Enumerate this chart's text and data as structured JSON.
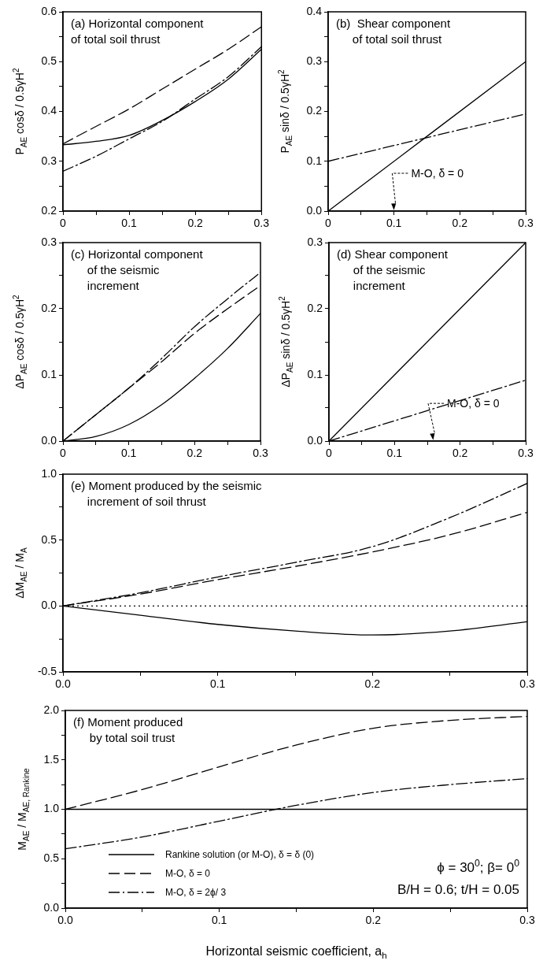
{
  "chart_data": [
    {
      "type": "line",
      "title": "(a) Horizontal component\nof total soil thrust",
      "ylabel": "P$_{AE}$ cosδ / 0.5γH$^{2}$",
      "xlim": [
        0,
        0.3
      ],
      "ylim": [
        0.2,
        0.6
      ],
      "xticks": [
        {
          "value": 0,
          "label": "0"
        },
        {
          "value": 0.05,
          "label": null
        },
        0.1,
        {
          "value": 0.15,
          "label": null
        },
        0.2,
        {
          "value": 0.25,
          "label": null
        },
        0.3
      ],
      "yticks": [
        0.2,
        {
          "value": 0.25,
          "label": null
        },
        0.3,
        {
          "value": 0.35,
          "label": null
        },
        0.4,
        {
          "value": 0.45,
          "label": null
        },
        0.5,
        {
          "value": 0.55,
          "label": null
        },
        0.6
      ],
      "x": [
        0,
        0.05,
        0.1,
        0.15,
        0.2,
        0.25,
        0.3
      ],
      "series": [
        {
          "color": "#000000",
          "line_style": "solid",
          "values": [
            0.333,
            0.34,
            0.352,
            0.382,
            0.42,
            0.465,
            0.525
          ]
        },
        {
          "color": "#000000",
          "line_style": "dashed",
          "values": [
            0.335,
            0.37,
            0.405,
            0.445,
            0.485,
            0.525,
            0.57
          ]
        },
        {
          "color": "#000000",
          "line_style": "dashdot",
          "values": [
            0.28,
            0.31,
            0.345,
            0.38,
            0.425,
            0.47,
            0.53
          ]
        }
      ]
    },
    {
      "type": "line",
      "title": "(b)  Shear component\n     of total soil thrust",
      "ylabel": "P$_{AE}$ sinδ / 0.5γH$^{2}$",
      "xlim": [
        0,
        0.3
      ],
      "ylim": [
        0,
        0.4
      ],
      "xticks": [
        {
          "value": 0,
          "label": "0"
        },
        {
          "value": 0.05,
          "label": null
        },
        0.1,
        {
          "value": 0.15,
          "label": null
        },
        0.2,
        {
          "value": 0.25,
          "label": null
        },
        0.3
      ],
      "yticks": [
        {
          "value": 0,
          "label": "0.0"
        },
        {
          "value": 0.05,
          "label": null
        },
        0.1,
        {
          "value": 0.15,
          "label": null
        },
        0.2,
        {
          "value": 0.25,
          "label": null
        },
        0.3,
        {
          "value": 0.35,
          "label": null
        },
        0.4
      ],
      "x": [
        0,
        0.3
      ],
      "series": [
        {
          "color": "#000000",
          "line_style": "solid",
          "values": [
            0,
            0.3
          ]
        },
        {
          "color": "#000000",
          "line_style": "dashdot",
          "values": [
            0.1,
            0.195
          ]
        }
      ],
      "annotations": [
        "M-O, δ = 0"
      ]
    },
    {
      "type": "line",
      "title": "(c) Horizontal component\n     of the seismic\n     increment",
      "ylabel": "ΔP$_{AE}$ cosδ / 0.5γH$^{2}$",
      "xlim": [
        0,
        0.3
      ],
      "ylim": [
        0,
        0.3
      ],
      "xticks": [
        {
          "value": 0,
          "label": "0"
        },
        {
          "value": 0.05,
          "label": null
        },
        0.1,
        {
          "value": 0.15,
          "label": null
        },
        0.2,
        {
          "value": 0.25,
          "label": null
        },
        0.3
      ],
      "yticks": [
        {
          "value": 0,
          "label": "0.0"
        },
        {
          "value": 0.05,
          "label": null
        },
        0.1,
        {
          "value": 0.15,
          "label": null
        },
        0.2,
        {
          "value": 0.25,
          "label": null
        },
        0.3
      ],
      "x": [
        0,
        0.05,
        0.1,
        0.15,
        0.2,
        0.25,
        0.3
      ],
      "series": [
        {
          "color": "#000000",
          "line_style": "solid",
          "values": [
            0,
            0.007,
            0.025,
            0.055,
            0.095,
            0.14,
            0.193
          ]
        },
        {
          "color": "#000000",
          "line_style": "dashed",
          "values": [
            0,
            0.04,
            0.08,
            0.12,
            0.163,
            0.2,
            0.235
          ]
        },
        {
          "color": "#000000",
          "line_style": "dashdot",
          "values": [
            0,
            0.04,
            0.08,
            0.125,
            0.173,
            0.215,
            0.255
          ]
        }
      ]
    },
    {
      "type": "line",
      "title": "(d) Shear component\n     of the seismic\n     increment",
      "ylabel": "ΔP$_{AE}$ sinδ / 0.5γH$^{2}$",
      "xlim": [
        0,
        0.3
      ],
      "ylim": [
        0,
        0.3
      ],
      "xticks": [
        {
          "value": 0,
          "label": "0"
        },
        {
          "value": 0.05,
          "label": null
        },
        0.1,
        {
          "value": 0.15,
          "label": null
        },
        0.2,
        {
          "value": 0.25,
          "label": null
        },
        0.3
      ],
      "yticks": [
        {
          "value": 0,
          "label": "0.0"
        },
        {
          "value": 0.05,
          "label": null
        },
        0.1,
        {
          "value": 0.15,
          "label": null
        },
        0.2,
        {
          "value": 0.25,
          "label": null
        },
        0.3
      ],
      "x": [
        0,
        0.3
      ],
      "series": [
        {
          "color": "#000000",
          "line_style": "solid",
          "values": [
            0,
            0.3
          ]
        },
        {
          "color": "#000000",
          "line_style": "dashdot",
          "values": [
            0,
            0.092
          ]
        }
      ],
      "annotations": [
        "M-O, δ = 0"
      ]
    },
    {
      "type": "line",
      "title": "(e) Moment produced by the seismic\n     increment of soil thrust",
      "ylabel": "ΔM$_{AE}$ / M$_{A}$",
      "xlim": [
        0,
        0.3
      ],
      "ylim": [
        -0.5,
        1
      ],
      "xticks": [
        {
          "value": 0,
          "label": "0.0"
        },
        {
          "value": 0.05,
          "label": null
        },
        0.1,
        {
          "value": 0.15,
          "label": null
        },
        0.2,
        {
          "value": 0.25,
          "label": null
        },
        0.3
      ],
      "yticks": [
        -0.5,
        {
          "value": -0.25,
          "label": null
        },
        {
          "value": 0,
          "label": "0.0"
        },
        {
          "value": 0.25,
          "label": null
        },
        0.5,
        {
          "value": 0.75,
          "label": null
        },
        {
          "value": 1,
          "label": "1.0"
        }
      ],
      "x": [
        0,
        0.05,
        0.1,
        0.15,
        0.2,
        0.25,
        0.3
      ],
      "series": [
        {
          "color": "#000000",
          "line_style": "solid",
          "values": [
            0,
            -0.07,
            -0.14,
            -0.19,
            -0.22,
            -0.19,
            -0.12
          ]
        },
        {
          "color": "#000000",
          "line_style": "dashed",
          "values": [
            0,
            0.09,
            0.2,
            0.3,
            0.41,
            0.54,
            0.71
          ]
        },
        {
          "color": "#000000",
          "line_style": "dashdot",
          "values": [
            0,
            0.1,
            0.22,
            0.33,
            0.45,
            0.67,
            0.93
          ]
        }
      ],
      "ref_lines": [
        {
          "axis": "y",
          "value": 0,
          "color": "#000000",
          "line_style": "dotted"
        }
      ]
    },
    {
      "type": "line",
      "title": "(f) Moment produced\n     by total soil trust",
      "ylabel": "M$_{AE}$ / M$_{AE, Rankine}$",
      "xlabel": "Horizontal seismic coefficient, a$_{h}$",
      "xlim": [
        0,
        0.3
      ],
      "ylim": [
        0,
        2
      ],
      "xticks": [
        {
          "value": 0,
          "label": "0.0"
        },
        {
          "value": 0.05,
          "label": null
        },
        0.1,
        {
          "value": 0.15,
          "label": null
        },
        0.2,
        {
          "value": 0.25,
          "label": null
        },
        0.3
      ],
      "yticks": [
        {
          "value": 0,
          "label": "0.0"
        },
        {
          "value": 0.25,
          "label": null
        },
        0.5,
        {
          "value": 0.75,
          "label": null
        },
        {
          "value": 1,
          "label": "1.0"
        },
        {
          "value": 1.25,
          "label": null
        },
        1.5,
        {
          "value": 1.75,
          "label": null
        },
        {
          "value": 2,
          "label": "2.0"
        }
      ],
      "x": [
        0,
        0.05,
        0.1,
        0.15,
        0.2,
        0.25,
        0.3
      ],
      "series": [
        {
          "name": "Rankine solution (or M-O), δ = δ (0)",
          "color": "#000000",
          "line_style": "solid",
          "values": [
            1,
            1,
            1,
            1,
            1,
            1,
            1
          ]
        },
        {
          "name": "M-O, δ = 0",
          "color": "#000000",
          "line_style": "dashed",
          "values": [
            1,
            1.2,
            1.43,
            1.65,
            1.82,
            1.9,
            1.94
          ]
        },
        {
          "name": "M-O, δ = 2ϕ/ 3",
          "color": "#000000",
          "line_style": "dashdot",
          "values": [
            0.6,
            0.72,
            0.88,
            1.04,
            1.17,
            1.25,
            1.31
          ]
        }
      ],
      "legend": "bottom left",
      "annotations": [
        "ϕ = 30$^{0}$; β= 0$^{0}$",
        "B/H = 0.6; t/H = 0.05"
      ]
    }
  ]
}
